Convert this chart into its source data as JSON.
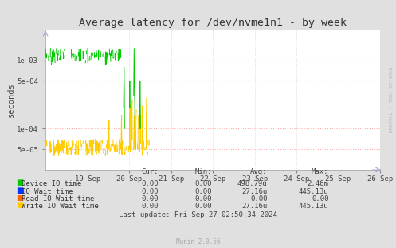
{
  "title": "Average latency for /dev/nvme1n1 - by week",
  "ylabel": "seconds",
  "background_color": "#e0e0e0",
  "plot_bg_color": "#ffffff",
  "right_label": "RRDTOOL / TOBI OETIKER",
  "footer_text": "Munin 2.0.56",
  "legend_items": [
    {
      "label": "Device IO time",
      "color": "#00cc00"
    },
    {
      "label": "IO Wait time",
      "color": "#0033ff"
    },
    {
      "label": "Read IO Wait time",
      "color": "#ff6600"
    },
    {
      "label": "Write IO Wait time",
      "color": "#ffcc00"
    }
  ],
  "table_headers": [
    "Cur:",
    "Min:",
    "Avg:",
    "Max:"
  ],
  "table_data": [
    [
      "0.00",
      "0.00",
      "498.79u",
      "2.46m"
    ],
    [
      "0.00",
      "0.00",
      "27.16u",
      "445.13u"
    ],
    [
      "0.00",
      "0.00",
      "0.00",
      "0.00"
    ],
    [
      "0.00",
      "0.00",
      "27.16u",
      "445.13u"
    ]
  ],
  "last_update": "Last update: Fri Sep 27 02:50:34 2024",
  "ylim_min": 2.5e-05,
  "ylim_max": 0.0028,
  "xlim_min": 0,
  "xlim_max": 691200,
  "yticks": [
    5e-05,
    0.0001,
    0.0005,
    0.001
  ],
  "ytick_labels": [
    "5e-05",
    "1e-04",
    "5e-04",
    "1e-03"
  ],
  "xtick_days": [
    1,
    2,
    3,
    4,
    5,
    6,
    7,
    8
  ],
  "xtick_labels": [
    "19 Sep",
    "20 Sep",
    "21 Sep",
    "22 Sep",
    "23 Sep",
    "24 Sep",
    "25 Sep",
    "26 Sep"
  ]
}
